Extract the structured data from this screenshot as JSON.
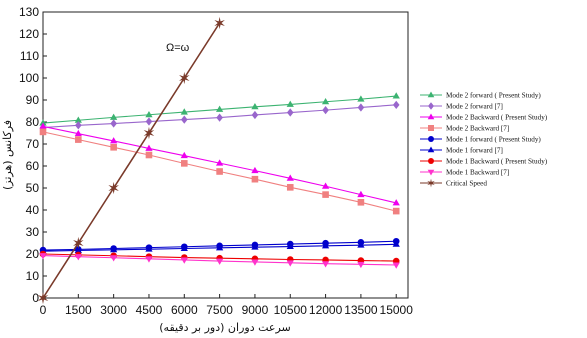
{
  "chart_data": {
    "type": "line",
    "title": "",
    "xlabel": "سرعت دوران (دور بر دقیقه)",
    "ylabel": "فرکانس (هرتز)",
    "xlim": [
      0,
      15500
    ],
    "ylim": [
      0,
      130
    ],
    "xticks": [
      0,
      1500,
      3000,
      4500,
      6000,
      7500,
      9000,
      10500,
      12000,
      13500,
      15000
    ],
    "yticks": [
      0,
      10,
      20,
      30,
      40,
      50,
      60,
      70,
      80,
      90,
      100,
      110,
      120,
      130
    ],
    "grid": false,
    "legend_position": "right",
    "annotation": "Ω=ω",
    "x": [
      0,
      1500,
      3000,
      4500,
      6000,
      7500,
      9000,
      10500,
      12000,
      13500,
      15000
    ],
    "series": [
      {
        "name": "Mode 2 forward ( Present Study)",
        "color": "#3cb371",
        "marker": "triangle-up",
        "values": [
          79.5,
          80.8,
          82.1,
          83.3,
          84.5,
          85.7,
          86.9,
          88.0,
          89.2,
          90.4,
          91.8
        ]
      },
      {
        "name": "Mode 2 forward [7]",
        "color": "#9966cc",
        "marker": "diamond",
        "values": [
          77.5,
          78.5,
          79.3,
          80.2,
          81.1,
          82.0,
          83.2,
          84.3,
          85.4,
          86.6,
          87.8
        ]
      },
      {
        "name": "Mode 2 Backward ( Present Study)",
        "color": "#ee00ee",
        "marker": "triangle-up",
        "values": [
          78.0,
          74.7,
          71.4,
          68.0,
          64.7,
          61.3,
          57.9,
          54.4,
          50.8,
          47.0,
          43.2
        ]
      },
      {
        "name": "Mode 2 Backward [7]",
        "color": "#f08080",
        "marker": "square",
        "values": [
          75.5,
          72.0,
          68.5,
          65.0,
          61.2,
          57.5,
          54.0,
          50.3,
          47.0,
          43.5,
          39.5
        ]
      },
      {
        "name": "Mode 1 forward ( Present Study)",
        "color": "#0000cc",
        "marker": "circle",
        "values": [
          21.8,
          22.1,
          22.5,
          22.9,
          23.3,
          23.7,
          24.1,
          24.5,
          24.9,
          25.3,
          25.8
        ]
      },
      {
        "name": "Mode 1 forward [7]",
        "color": "#0000cc",
        "marker": "triangle-up",
        "values": [
          21.3,
          21.6,
          21.9,
          22.2,
          22.5,
          22.8,
          23.1,
          23.4,
          23.7,
          24.0,
          24.4
        ]
      },
      {
        "name": "Mode 1 Backward ( Present Study)",
        "color": "#ee0000",
        "marker": "circle",
        "values": [
          20.0,
          19.6,
          19.2,
          18.8,
          18.4,
          18.1,
          17.8,
          17.5,
          17.3,
          17.0,
          16.8
        ]
      },
      {
        "name": "Mode 1 Backward [7]",
        "color": "#ff33cc",
        "marker": "triangle-down",
        "values": [
          19.3,
          18.8,
          18.3,
          17.8,
          17.3,
          16.8,
          16.4,
          16.0,
          15.6,
          15.3,
          15.0
        ]
      },
      {
        "name": "Critical Speed",
        "color": "#7a3a2a",
        "marker": "star",
        "x": [
          0,
          1500,
          3000,
          4500,
          6000,
          7500
        ],
        "values": [
          0,
          25,
          50,
          75,
          100,
          125
        ]
      }
    ]
  }
}
